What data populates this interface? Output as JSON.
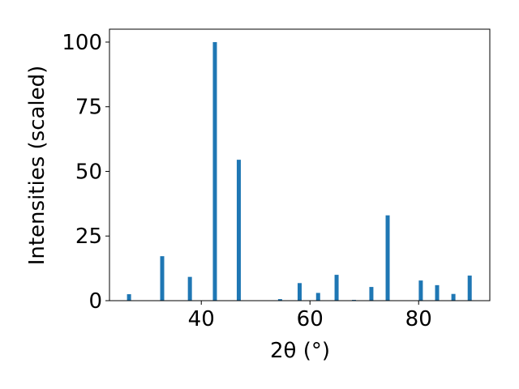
{
  "chart_data": {
    "type": "bar",
    "xlabel": "2θ (°)",
    "ylabel": "Intensities (scaled)",
    "x": [
      26.7,
      32.8,
      37.9,
      42.5,
      46.9,
      54.5,
      58.1,
      61.5,
      64.9,
      68.1,
      71.3,
      74.3,
      80.4,
      83.4,
      86.4,
      89.4
    ],
    "values": [
      2.5,
      17.2,
      9.2,
      100,
      54.5,
      0.6,
      6.8,
      3,
      10,
      0.3,
      5.3,
      33,
      7.8,
      6,
      2.6,
      9.7
    ],
    "color": "#1f77b4",
    "xlim": [
      23.1,
      93.1
    ],
    "xticks": [
      40,
      60,
      80
    ],
    "ylim": [
      0,
      105
    ],
    "yticks": [
      0,
      25,
      50,
      75,
      100
    ],
    "grid": false
  }
}
